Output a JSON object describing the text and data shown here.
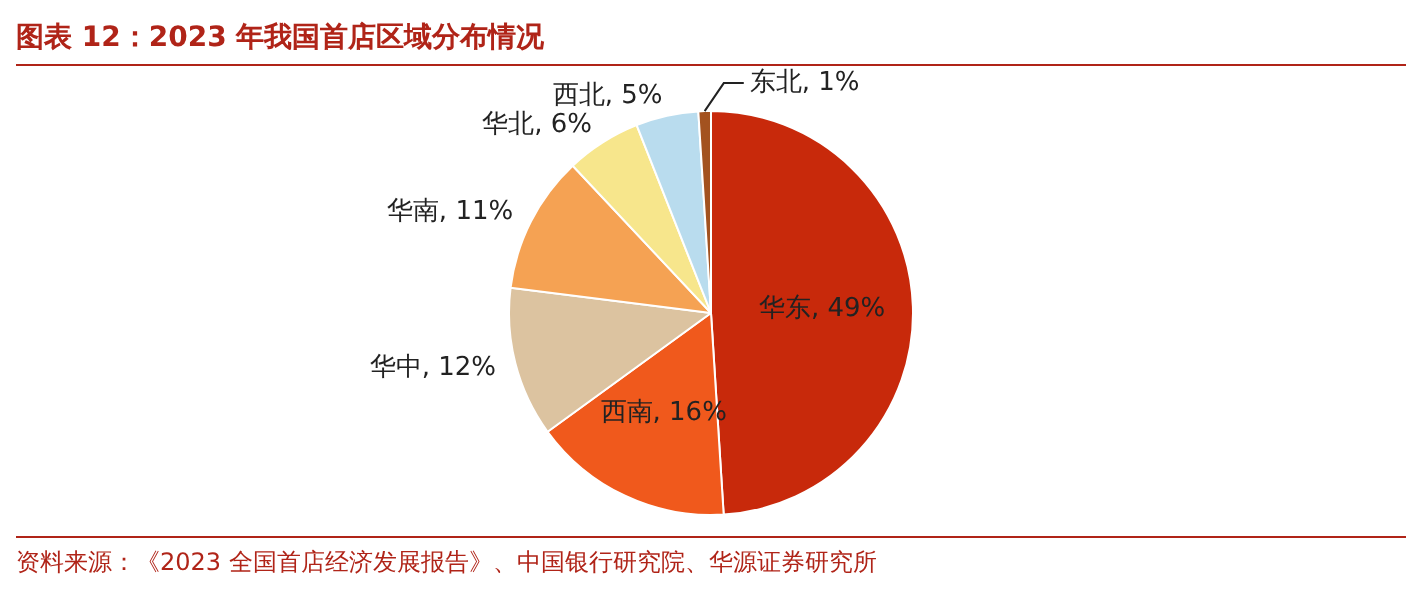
{
  "chart_data": {
    "type": "pie",
    "title": "图表 12：2023 年我国首店区域分布情况",
    "categories": [
      "华东",
      "西南",
      "华中",
      "华南",
      "华北",
      "西北",
      "东北"
    ],
    "values": [
      49,
      16,
      12,
      11,
      6,
      5,
      1
    ],
    "value_labels": [
      "49%",
      "16%",
      "12%",
      "11%",
      "6%",
      "5%",
      "1%"
    ],
    "colors": [
      "#c8290b",
      "#f0591c",
      "#dcc3a0",
      "#f5a253",
      "#f7e68c",
      "#b9dcee",
      "#a3521f"
    ],
    "legend": false,
    "annotations": [
      "资料来源：《2023 全国首店经济发展报告》、中国银行研究院、华源证券研究所"
    ]
  }
}
